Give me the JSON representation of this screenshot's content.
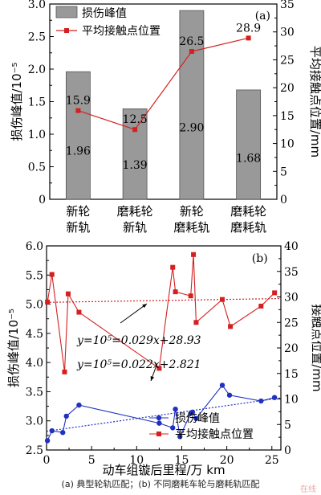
{
  "caption": "(a) 典型轮轨匹配；(b) 不同磨耗车轮与磨耗轨匹配",
  "watermark": "在线",
  "chart_data": [
    {
      "panel_label": "(a)",
      "type": "bar",
      "categories": [
        [
          "新轮",
          "新轨"
        ],
        [
          "磨耗轮",
          "新轨"
        ],
        [
          "新轮",
          "磨耗轨"
        ],
        [
          "磨耗轮",
          "磨耗轨"
        ]
      ],
      "ylabel_left": "损伤峰值/10⁻⁵",
      "ylabel_right": "平均接触点位置/mm",
      "ylim_left": [
        0,
        3.0
      ],
      "yticks_left": [
        "0",
        "0.5",
        "1.0",
        "1.5",
        "2.0",
        "2.5",
        "3.0"
      ],
      "ylim_right": [
        0,
        35
      ],
      "yticks_right": [
        "0",
        "5",
        "10",
        "15",
        "20",
        "25",
        "30",
        "35"
      ],
      "legend_position": "top-left",
      "bar_color": "#999999",
      "line_color": "#d42020",
      "series": [
        {
          "name": "损伤峰值",
          "kind": "bar",
          "axis": "left",
          "values": [
            1.96,
            1.39,
            2.9,
            1.68
          ],
          "labels": [
            "1.96",
            "1.39",
            "2.90",
            "1.68"
          ]
        },
        {
          "name": "平均接触点位置",
          "kind": "line",
          "axis": "right",
          "values": [
            15.9,
            12.5,
            26.5,
            28.9
          ],
          "labels": [
            "15.9",
            "12.5",
            "26.5",
            "28.9"
          ]
        }
      ]
    },
    {
      "panel_label": "(b)",
      "type": "scatter",
      "xlabel": "动车组镟后里程/万 km",
      "ylabel_left": "损伤峰值/10⁻⁵",
      "ylabel_right": "接触点位置/mm",
      "xlim": [
        0,
        26
      ],
      "xticks": [
        "0",
        "5",
        "10",
        "15",
        "20",
        "25"
      ],
      "ylim_left": [
        2.5,
        6.0
      ],
      "yticks_left": [
        "2.5",
        "3.0",
        "3.5",
        "4.0",
        "4.5",
        "5.0",
        "5.5",
        "6.0"
      ],
      "ylim_right": [
        0,
        40
      ],
      "yticks_right": [
        "0",
        "5",
        "10",
        "15",
        "20",
        "25",
        "30",
        "35",
        "40"
      ],
      "legend_position": "bottom-right",
      "blue_color": "#2030c0",
      "red_color": "#d42020",
      "series": [
        {
          "name": "损伤峰值",
          "axis": "left",
          "x": [
            0.1,
            0.6,
            1.8,
            2.2,
            3.6,
            12.5,
            14.0,
            14.3,
            14.8,
            16.0,
            16.2,
            16.6,
            19.5,
            20.3,
            23.8,
            25.3
          ],
          "y": [
            2.66,
            2.83,
            2.8,
            3.08,
            3.27,
            2.96,
            2.88,
            3.2,
            2.73,
            3.13,
            3.15,
            3.04,
            3.61,
            3.44,
            3.34,
            3.4
          ]
        },
        {
          "name": "平均接触点位置",
          "axis": "right",
          "x": [
            0.1,
            0.6,
            2.0,
            2.4,
            3.6,
            12.5,
            14.0,
            14.3,
            16.0,
            16.3,
            16.6,
            19.5,
            20.4,
            23.8,
            25.3
          ],
          "y": [
            29.0,
            34.4,
            15.3,
            30.6,
            27.0,
            16.0,
            35.8,
            31.0,
            30.2,
            38.3,
            25.0,
            29.5,
            24.2,
            28.2,
            30.8
          ]
        }
      ],
      "fits": [
        {
          "label": "y=10⁵=0.029x+28.93",
          "axis": "right",
          "slope": 0.029,
          "intercept": 28.93,
          "style": "dotted",
          "color": "#d42020"
        },
        {
          "label": "y=10⁵=0.022x+2.821",
          "axis": "left",
          "slope": 0.022,
          "intercept": 2.821,
          "style": "dotted",
          "color": "#2030c0"
        }
      ]
    }
  ]
}
